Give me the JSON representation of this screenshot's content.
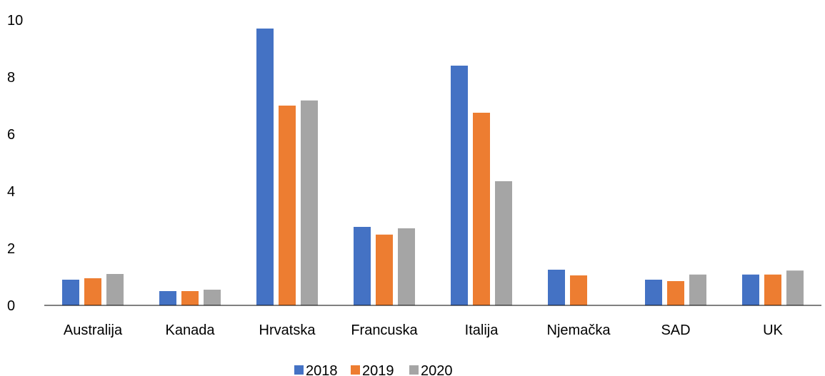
{
  "chart_data": {
    "type": "bar",
    "title": "",
    "xlabel": "",
    "ylabel": "",
    "ylim": [
      0,
      10
    ],
    "yticks": [
      0,
      2,
      4,
      6,
      8,
      10
    ],
    "grid": false,
    "legend_position": "bottom",
    "categories": [
      "Australija",
      "Kanada",
      "Hrvatska",
      "Francuska",
      "Italija",
      "Njemačka",
      "SAD",
      "UK"
    ],
    "series": [
      {
        "name": "2018",
        "color": "#4472C4",
        "values": [
          0.9,
          0.5,
          9.7,
          2.75,
          8.4,
          1.25,
          0.9,
          1.08
        ]
      },
      {
        "name": "2019",
        "color": "#ED7D31",
        "values": [
          0.95,
          0.5,
          7.0,
          2.48,
          6.75,
          1.05,
          0.85,
          1.08
        ]
      },
      {
        "name": "2020",
        "color": "#A5A5A5",
        "values": [
          1.1,
          0.55,
          7.18,
          2.7,
          4.35,
          0,
          1.08,
          1.22
        ]
      }
    ]
  }
}
